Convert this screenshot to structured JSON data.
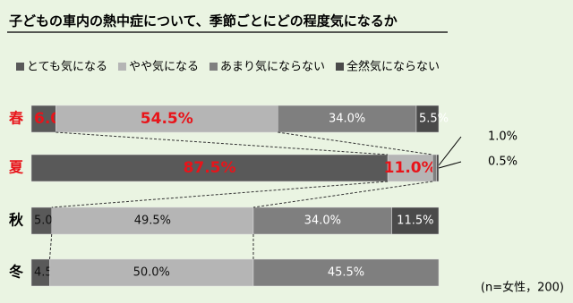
{
  "chart_data": {
    "type": "stacked-bar-horizontal",
    "title": "子どもの車内の熱中症について、季節ごとにどの程度気になるか",
    "categories": [
      "春",
      "夏",
      "秋",
      "冬"
    ],
    "xlim": [
      0,
      100
    ],
    "series": [
      {
        "name": "とても気になる",
        "color": "#595959",
        "values": [
          6.0,
          87.5,
          5.0,
          4.5
        ],
        "value_labels": [
          "6.0%",
          "87.5%",
          "5.0%",
          "4.5%"
        ]
      },
      {
        "name": "やや気になる",
        "color": "#b5b5b5",
        "values": [
          54.5,
          11.0,
          49.5,
          50.0
        ],
        "value_labels": [
          "54.5%",
          "11.0%",
          "49.5%",
          "50.0%"
        ]
      },
      {
        "name": "あまり気にならない",
        "color": "#7f7f7f",
        "values": [
          34.0,
          1.0,
          34.0,
          45.5
        ],
        "value_labels": [
          "34.0%",
          "1.0%",
          "34.0%",
          "45.5%"
        ]
      },
      {
        "name": "全然気にならない",
        "color": "#4a4a4a",
        "values": [
          5.5,
          0.5,
          11.5,
          0
        ],
        "value_labels": [
          "5.5%",
          "0.5%",
          "11.5%",
          null
        ]
      }
    ],
    "legend": "top",
    "note": "(n=女性，200)"
  }
}
